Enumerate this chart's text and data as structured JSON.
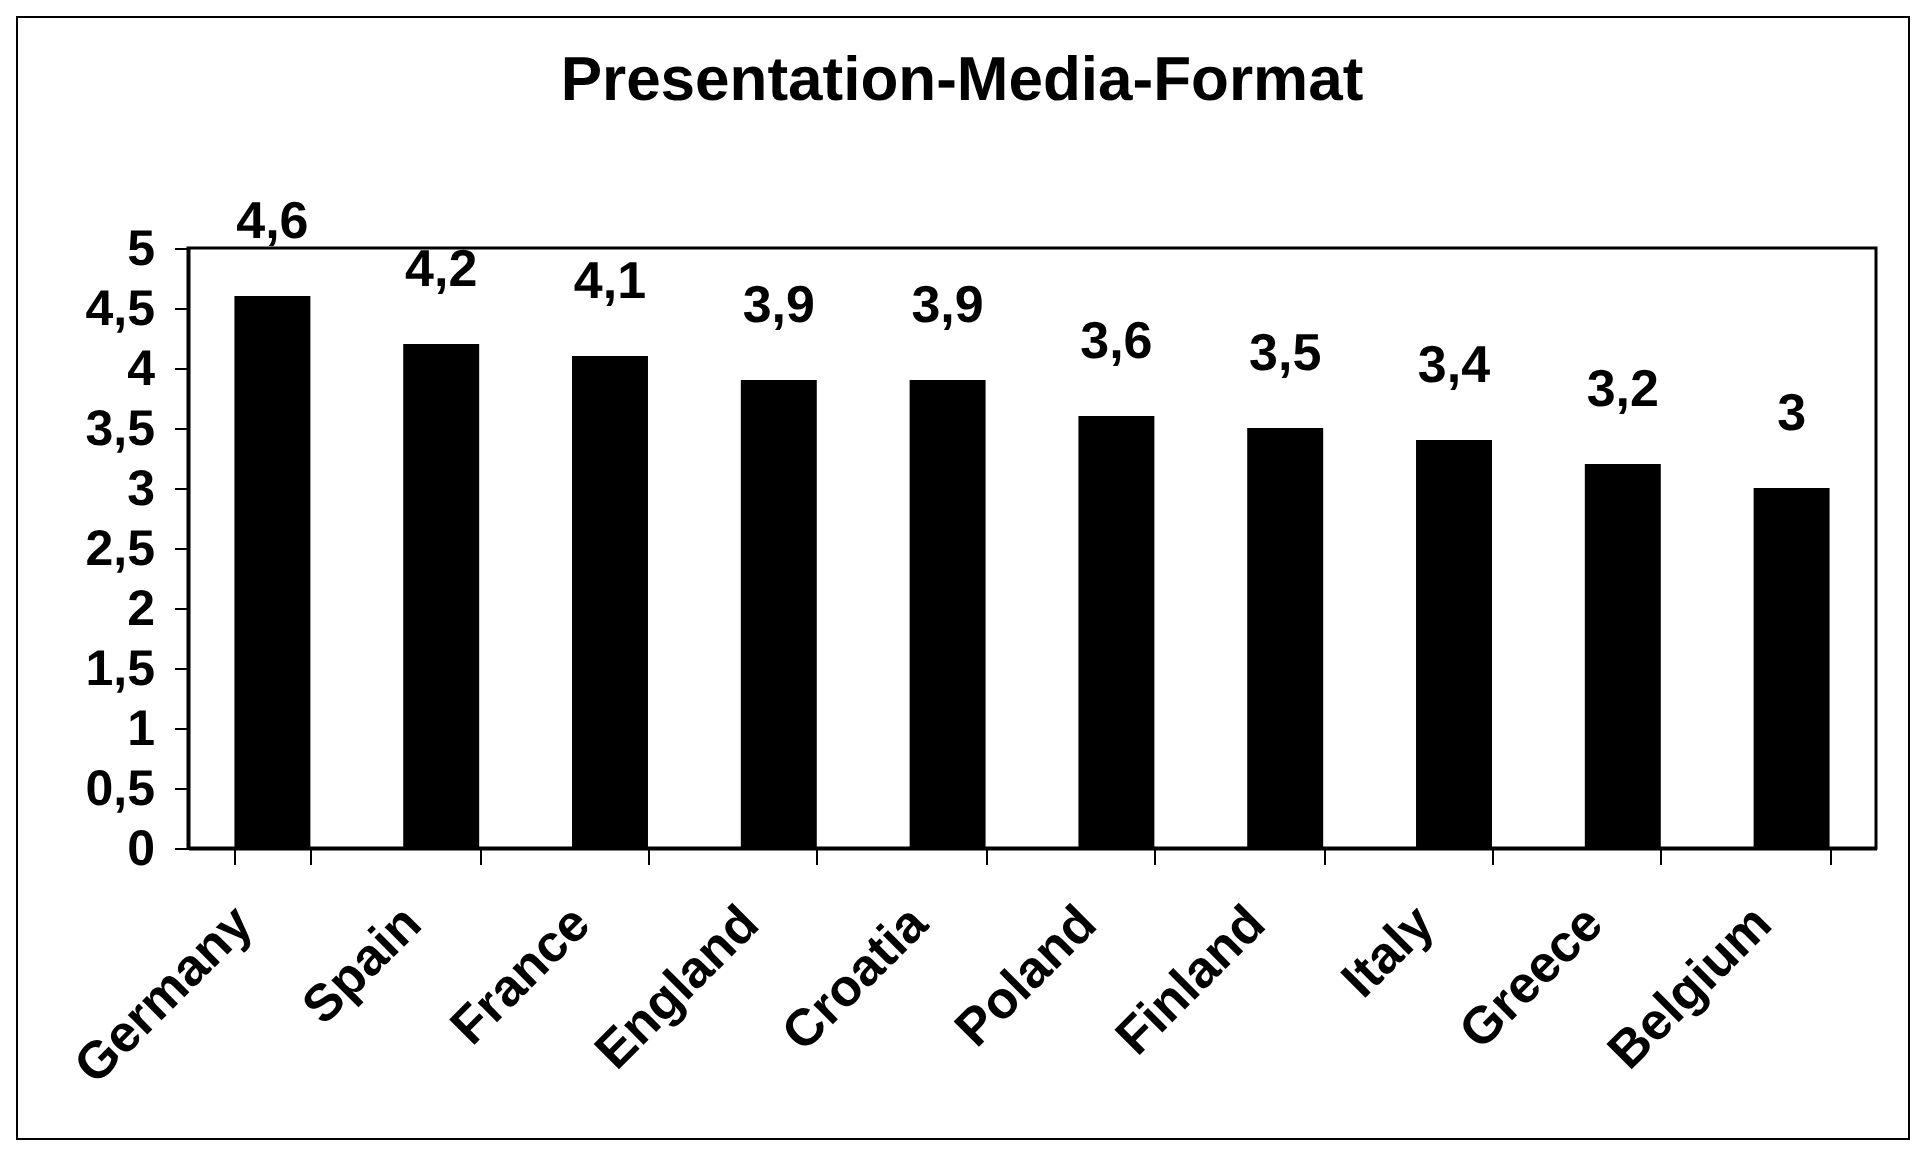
{
  "chart_data": {
    "type": "bar",
    "title": "Presentation-Media-Format",
    "categories": [
      "Germany",
      "Spain",
      "France",
      "England",
      "Croatia",
      "Poland",
      "Finland",
      "Italy",
      "Greece",
      "Belgium"
    ],
    "values": [
      4.6,
      4.2,
      4.1,
      3.9,
      3.9,
      3.6,
      3.5,
      3.4,
      3.2,
      3
    ],
    "value_labels": [
      "4,6",
      "4,2",
      "4,1",
      "3,9",
      "3,9",
      "3,6",
      "3,5",
      "3,4",
      "3,2",
      "3"
    ],
    "color": "#000000",
    "ylim": [
      0,
      5
    ],
    "yticks": [
      0,
      {
        "value": 0.5,
        "label": "0,5"
      },
      1,
      {
        "value": 1.5,
        "label": "1,5"
      },
      2,
      {
        "value": 2.5,
        "label": "2,5"
      },
      3,
      {
        "value": 3.5,
        "label": "3,5"
      },
      4,
      {
        "value": 4.5,
        "label": "4,5"
      },
      5
    ]
  }
}
